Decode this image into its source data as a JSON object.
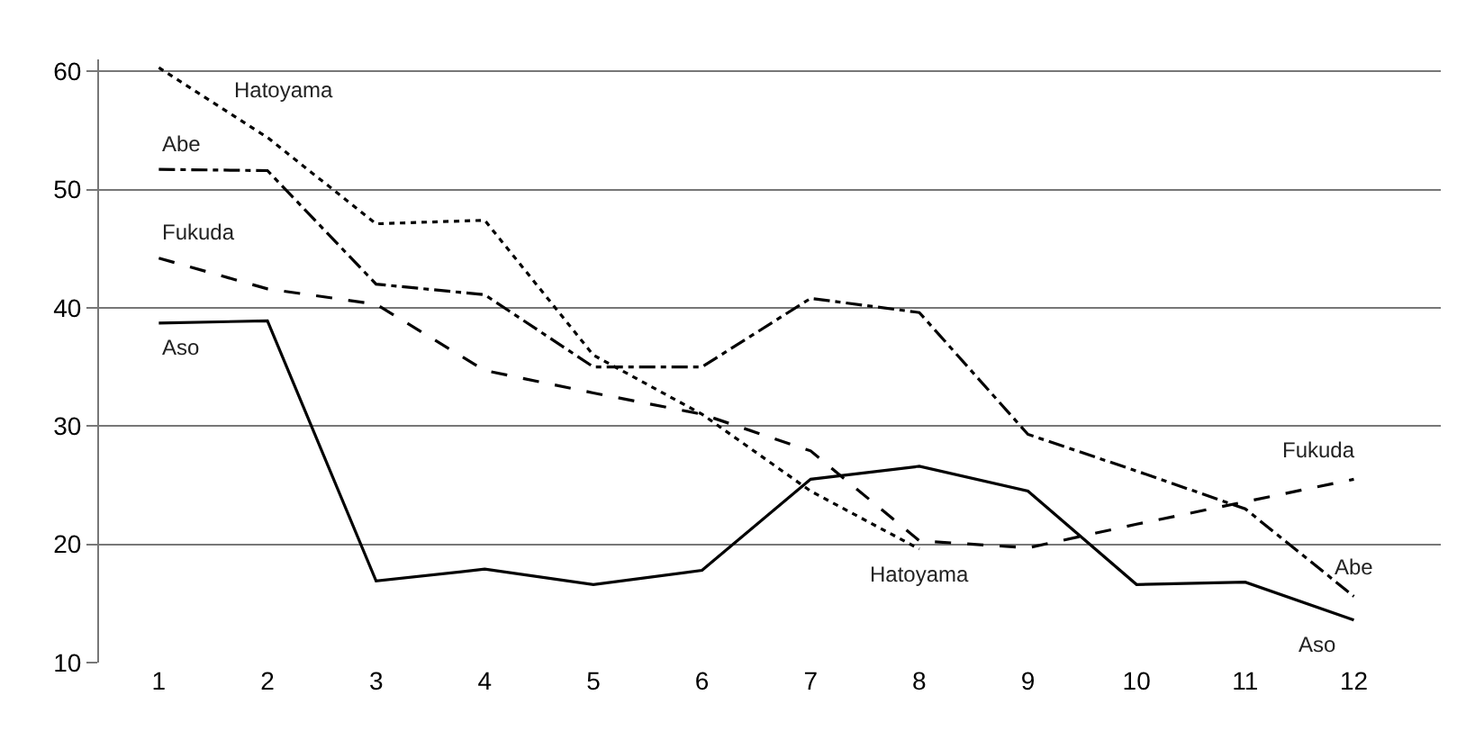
{
  "chart_data": {
    "type": "line",
    "x": [
      1,
      2,
      3,
      4,
      5,
      6,
      7,
      8,
      9,
      10,
      11,
      12
    ],
    "series": [
      {
        "name": "Hatoyama",
        "color": "#000000",
        "line_style": "dotted",
        "values": [
          60.3,
          54.4,
          47.1,
          47.4,
          36.0,
          31.0,
          24.5,
          19.6,
          null,
          null,
          null,
          null
        ]
      },
      {
        "name": "Abe",
        "color": "#000000",
        "line_style": "dashdot",
        "values": [
          51.7,
          51.6,
          42.0,
          41.1,
          35.0,
          35.0,
          40.8,
          39.6,
          29.3,
          26.2,
          23.0,
          15.6
        ]
      },
      {
        "name": "Fukuda",
        "color": "#000000",
        "line_style": "dashed",
        "values": [
          44.2,
          41.6,
          40.3,
          34.7,
          32.8,
          31.0,
          27.9,
          20.3,
          19.7,
          21.7,
          23.6,
          25.5
        ]
      },
      {
        "name": "Aso",
        "color": "#000000",
        "line_style": "solid",
        "values": [
          38.7,
          38.9,
          16.9,
          17.9,
          16.6,
          17.8,
          25.5,
          26.6,
          24.5,
          16.6,
          16.8,
          13.6
        ]
      }
    ],
    "xlim": [
      0.45,
      12.8
    ],
    "xticks": [
      1,
      2,
      3,
      4,
      5,
      6,
      7,
      8,
      9,
      10,
      11,
      12
    ],
    "ylim": [
      10,
      61
    ],
    "yticks": [
      10,
      20,
      30,
      40,
      50,
      60
    ],
    "grid": "y",
    "legend": false,
    "marker": "none"
  }
}
